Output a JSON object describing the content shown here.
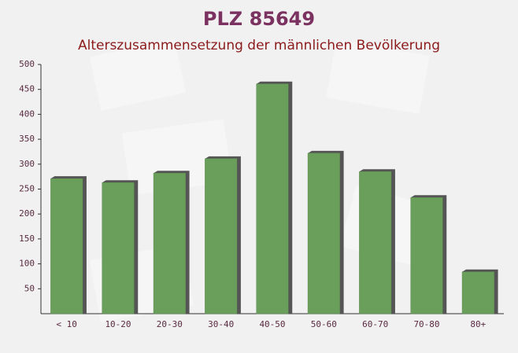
{
  "chart_data": {
    "type": "bar",
    "title": "PLZ 85649",
    "subtitle": "Alterszusammensetzung der männlichen Bevölkerung",
    "categories": [
      "< 10",
      "10-20",
      "20-30",
      "30-40",
      "40-50",
      "50-60",
      "60-70",
      "70-80",
      "80+"
    ],
    "values": [
      271,
      263,
      282,
      311,
      461,
      322,
      285,
      233,
      84
    ],
    "color": "#6a9e5b",
    "ylim": [
      0,
      500
    ],
    "yticks": [
      50,
      100,
      150,
      200,
      250,
      300,
      350,
      400,
      450,
      500
    ],
    "grid": false
  }
}
